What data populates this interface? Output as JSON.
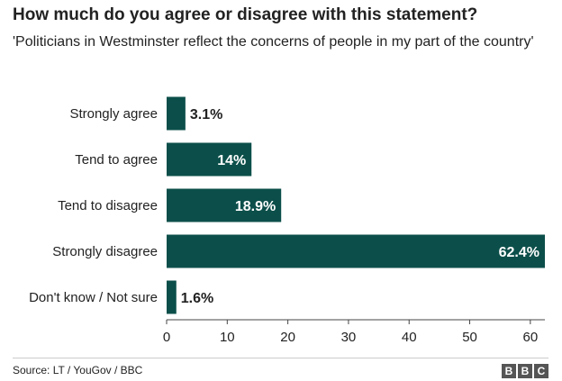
{
  "header": {
    "title": "How much do you agree or disagree with this statement?",
    "subtitle": "'Politicians in Westminster reflect the concerns of people in my part of the country'"
  },
  "footer": {
    "source": "Source: LT / YouGov / BBC",
    "logo_letters": [
      "B",
      "B",
      "C"
    ]
  },
  "colors": {
    "bar": "#0c4f4a",
    "label_inside": "#ffffff",
    "label_outside": "#222222",
    "axis": "#444444"
  },
  "chart_data": {
    "type": "bar",
    "orientation": "horizontal",
    "title": "How much do you agree or disagree with this statement?",
    "subtitle": "'Politicians in Westminster reflect the concerns of people in my part of the country'",
    "categories": [
      "Strongly agree",
      "Tend to agree",
      "Tend to disagree",
      "Strongly disagree",
      "Don't know / Not sure"
    ],
    "values": [
      3.1,
      14,
      18.9,
      62.4,
      1.6
    ],
    "value_labels": [
      "3.1%",
      "14%",
      "18.9%",
      "62.4%",
      "1.6%"
    ],
    "xlim": [
      0,
      62.4
    ],
    "xticks": [
      0,
      10,
      20,
      30,
      40,
      50,
      60
    ],
    "grid": false,
    "legend": "none"
  }
}
